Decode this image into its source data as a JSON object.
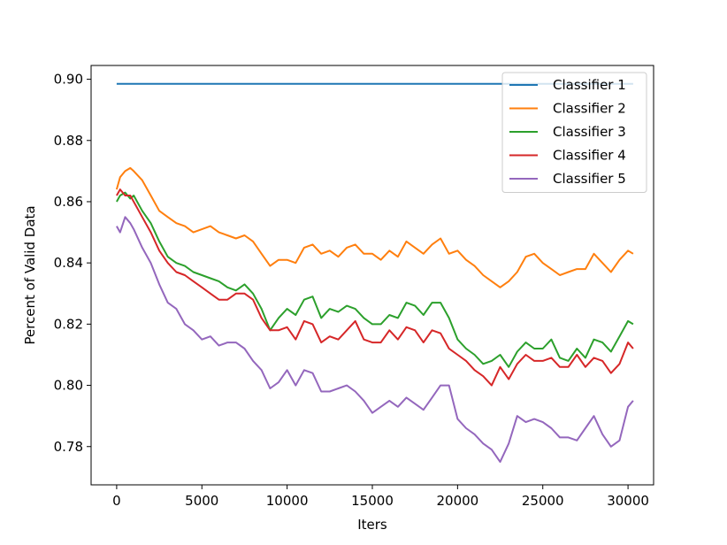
{
  "chart_data": {
    "type": "line",
    "title": "",
    "xlabel": "Iters",
    "ylabel": "Percent of Valid Data",
    "xlim": [
      -1500,
      31500
    ],
    "ylim": [
      0.7675,
      0.9045
    ],
    "xticks": [
      0,
      5000,
      10000,
      15000,
      20000,
      25000,
      30000
    ],
    "xtick_labels": [
      "0",
      "5000",
      "10000",
      "15000",
      "20000",
      "25000",
      "30000"
    ],
    "yticks": [
      0.78,
      0.8,
      0.82,
      0.84,
      0.86,
      0.88,
      0.9
    ],
    "ytick_labels": [
      "0.78",
      "0.80",
      "0.82",
      "0.84",
      "0.86",
      "0.88",
      "0.90"
    ],
    "grid": false,
    "legend": "top-right",
    "series": [
      {
        "name": "Classifier 1",
        "color": "#1f77b4",
        "x": [
          0,
          30300
        ],
        "y": [
          0.8985,
          0.8985
        ]
      },
      {
        "name": "Classifier 2",
        "color": "#ff7f0e",
        "x": [
          0,
          200,
          500,
          800,
          1000,
          1500,
          2000,
          2500,
          3000,
          3500,
          4000,
          4500,
          5000,
          5500,
          6000,
          6500,
          7000,
          7500,
          8000,
          8500,
          9000,
          9500,
          10000,
          10500,
          11000,
          11500,
          12000,
          12500,
          13000,
          13500,
          14000,
          14500,
          15000,
          15500,
          16000,
          16500,
          17000,
          17500,
          18000,
          18500,
          19000,
          19500,
          20000,
          20500,
          21000,
          21500,
          22000,
          22500,
          23000,
          23500,
          24000,
          24500,
          25000,
          25500,
          26000,
          26500,
          27000,
          27500,
          28000,
          28500,
          29000,
          29500,
          30000,
          30300
        ],
        "y": [
          0.864,
          0.868,
          0.87,
          0.871,
          0.87,
          0.867,
          0.862,
          0.857,
          0.855,
          0.853,
          0.852,
          0.85,
          0.851,
          0.852,
          0.85,
          0.849,
          0.848,
          0.849,
          0.847,
          0.843,
          0.839,
          0.841,
          0.841,
          0.84,
          0.845,
          0.846,
          0.843,
          0.844,
          0.842,
          0.845,
          0.846,
          0.843,
          0.843,
          0.841,
          0.844,
          0.842,
          0.847,
          0.845,
          0.843,
          0.846,
          0.848,
          0.843,
          0.844,
          0.841,
          0.839,
          0.836,
          0.834,
          0.832,
          0.834,
          0.837,
          0.842,
          0.843,
          0.84,
          0.838,
          0.836,
          0.837,
          0.838,
          0.838,
          0.843,
          0.84,
          0.837,
          0.841,
          0.844,
          0.843
        ]
      },
      {
        "name": "Classifier 3",
        "color": "#2ca02c",
        "x": [
          0,
          200,
          500,
          800,
          1000,
          1500,
          2000,
          2500,
          3000,
          3500,
          4000,
          4500,
          5000,
          5500,
          6000,
          6500,
          7000,
          7500,
          8000,
          8500,
          9000,
          9500,
          10000,
          10500,
          11000,
          11500,
          12000,
          12500,
          13000,
          13500,
          14000,
          14500,
          15000,
          15500,
          16000,
          16500,
          17000,
          17500,
          18000,
          18500,
          19000,
          19500,
          20000,
          20500,
          21000,
          21500,
          22000,
          22500,
          23000,
          23500,
          24000,
          24500,
          25000,
          25500,
          26000,
          26500,
          27000,
          27500,
          28000,
          28500,
          29000,
          29500,
          30000,
          30300
        ],
        "y": [
          0.86,
          0.862,
          0.863,
          0.861,
          0.862,
          0.857,
          0.853,
          0.847,
          0.842,
          0.84,
          0.839,
          0.837,
          0.836,
          0.835,
          0.834,
          0.832,
          0.831,
          0.833,
          0.83,
          0.825,
          0.818,
          0.822,
          0.825,
          0.823,
          0.828,
          0.829,
          0.822,
          0.825,
          0.824,
          0.826,
          0.825,
          0.822,
          0.82,
          0.82,
          0.823,
          0.822,
          0.827,
          0.826,
          0.823,
          0.827,
          0.827,
          0.822,
          0.815,
          0.812,
          0.81,
          0.807,
          0.808,
          0.81,
          0.806,
          0.811,
          0.814,
          0.812,
          0.812,
          0.815,
          0.809,
          0.808,
          0.812,
          0.809,
          0.815,
          0.814,
          0.811,
          0.816,
          0.821,
          0.82
        ]
      },
      {
        "name": "Classifier 4",
        "color": "#d62728",
        "x": [
          0,
          200,
          500,
          800,
          1000,
          1500,
          2000,
          2500,
          3000,
          3500,
          4000,
          4500,
          5000,
          5500,
          6000,
          6500,
          7000,
          7500,
          8000,
          8500,
          9000,
          9500,
          10000,
          10500,
          11000,
          11500,
          12000,
          12500,
          13000,
          13500,
          14000,
          14500,
          15000,
          15500,
          16000,
          16500,
          17000,
          17500,
          18000,
          18500,
          19000,
          19500,
          20000,
          20500,
          21000,
          21500,
          22000,
          22500,
          23000,
          23500,
          24000,
          24500,
          25000,
          25500,
          26000,
          26500,
          27000,
          27500,
          28000,
          28500,
          29000,
          29500,
          30000,
          30300
        ],
        "y": [
          0.862,
          0.864,
          0.862,
          0.862,
          0.86,
          0.855,
          0.85,
          0.844,
          0.84,
          0.837,
          0.836,
          0.834,
          0.832,
          0.83,
          0.828,
          0.828,
          0.83,
          0.83,
          0.828,
          0.822,
          0.818,
          0.818,
          0.819,
          0.815,
          0.821,
          0.82,
          0.814,
          0.816,
          0.815,
          0.818,
          0.821,
          0.815,
          0.814,
          0.814,
          0.818,
          0.815,
          0.819,
          0.818,
          0.814,
          0.818,
          0.817,
          0.812,
          0.81,
          0.808,
          0.805,
          0.803,
          0.8,
          0.806,
          0.802,
          0.807,
          0.81,
          0.808,
          0.808,
          0.809,
          0.806,
          0.806,
          0.81,
          0.806,
          0.809,
          0.808,
          0.804,
          0.807,
          0.814,
          0.812
        ]
      },
      {
        "name": "Classifier 5",
        "color": "#9467bd",
        "x": [
          0,
          200,
          500,
          800,
          1000,
          1500,
          2000,
          2500,
          3000,
          3500,
          4000,
          4500,
          5000,
          5500,
          6000,
          6500,
          7000,
          7500,
          8000,
          8500,
          9000,
          9500,
          10000,
          10500,
          11000,
          11500,
          12000,
          12500,
          13000,
          13500,
          14000,
          14500,
          15000,
          15500,
          16000,
          16500,
          17000,
          17500,
          18000,
          18500,
          19000,
          19500,
          20000,
          20500,
          21000,
          21500,
          22000,
          22500,
          23000,
          23500,
          24000,
          24500,
          25000,
          25500,
          26000,
          26500,
          27000,
          27500,
          28000,
          28500,
          29000,
          29500,
          30000,
          30300
        ],
        "y": [
          0.852,
          0.85,
          0.855,
          0.853,
          0.851,
          0.845,
          0.84,
          0.833,
          0.827,
          0.825,
          0.82,
          0.818,
          0.815,
          0.816,
          0.813,
          0.814,
          0.814,
          0.812,
          0.808,
          0.805,
          0.799,
          0.801,
          0.805,
          0.8,
          0.805,
          0.804,
          0.798,
          0.798,
          0.799,
          0.8,
          0.798,
          0.795,
          0.791,
          0.793,
          0.795,
          0.793,
          0.796,
          0.794,
          0.792,
          0.796,
          0.8,
          0.8,
          0.789,
          0.786,
          0.784,
          0.781,
          0.779,
          0.775,
          0.781,
          0.79,
          0.788,
          0.789,
          0.788,
          0.786,
          0.783,
          0.783,
          0.782,
          0.786,
          0.79,
          0.784,
          0.78,
          0.782,
          0.793,
          0.795
        ]
      }
    ]
  }
}
